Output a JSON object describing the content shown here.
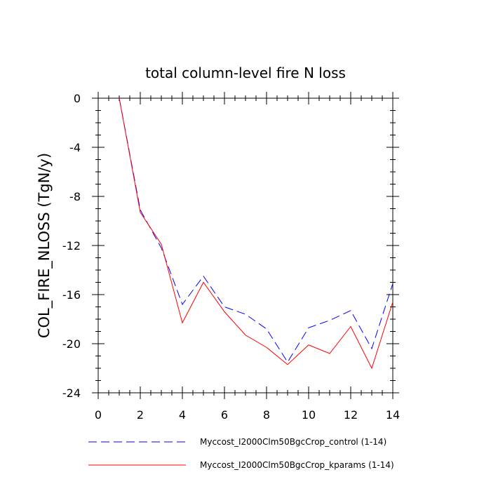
{
  "chart_data": {
    "type": "line",
    "title": "total column-level fire N loss",
    "xlabel": "",
    "ylabel": "COL_FIRE_NLOSS  (TgN/y)",
    "xlim": [
      0,
      14
    ],
    "ylim": [
      -24,
      0
    ],
    "xticks": [
      0,
      2,
      4,
      6,
      8,
      10,
      12,
      14
    ],
    "yticks": [
      0,
      -4,
      -8,
      -12,
      -16,
      -20,
      -24
    ],
    "x": [
      1,
      2,
      3,
      4,
      5,
      6,
      7,
      8,
      9,
      10,
      11,
      12,
      13,
      14
    ],
    "series": [
      {
        "name": "Myccost_I2000Clm50BgcCrop_control (1-14)",
        "style": "dashed",
        "color": "#0000ff",
        "values": [
          0,
          -9.1,
          -12.2,
          -16.8,
          -14.5,
          -17.0,
          -17.6,
          -18.8,
          -21.5,
          -18.7,
          -18.1,
          -17.3,
          -20.4,
          -15.1
        ]
      },
      {
        "name": "Myccost_I2000Clm50BgcCrop_kparams (1-14)",
        "style": "solid",
        "color": "#ff0000",
        "values": [
          0,
          -9.3,
          -11.9,
          -18.3,
          -15.0,
          -17.4,
          -19.3,
          -20.3,
          -21.7,
          -20.1,
          -20.8,
          -18.6,
          -22.0,
          -16.6
        ]
      }
    ]
  }
}
